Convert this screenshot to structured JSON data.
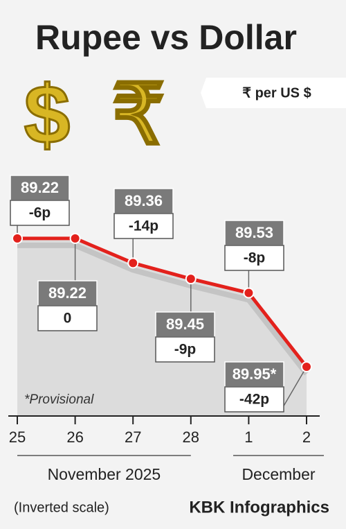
{
  "chart_data": {
    "type": "line",
    "title": "Rupee vs Dollar",
    "unit": "₹ per US $",
    "symbols": [
      "$",
      "₹"
    ],
    "categories": [
      "25",
      "26",
      "27",
      "28",
      "1",
      "2"
    ],
    "x_groups": [
      "November 2025",
      "December"
    ],
    "series": [
      {
        "name": "Rupee",
        "color": "#e3211c",
        "values": [
          89.22,
          89.22,
          89.36,
          89.45,
          89.53,
          89.95
        ],
        "value_labels": [
          "89.22",
          "89.22",
          "89.36",
          "89.45",
          "89.53",
          "89.95*"
        ],
        "changes": [
          "-6p",
          "0",
          "-14p",
          "-9p",
          "-8p",
          "-42p"
        ]
      }
    ],
    "ylim": [
      88.85,
      90.23
    ],
    "inverted": true,
    "note": "*Provisional",
    "scale_note": "(Inverted scale)",
    "credit": "KBK Infographics"
  }
}
